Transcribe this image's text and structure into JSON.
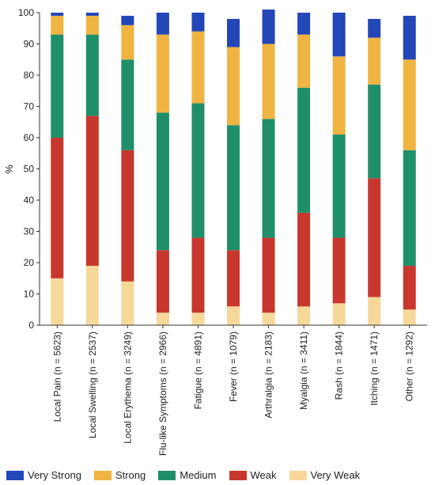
{
  "chart_data": {
    "type": "bar",
    "stacked": true,
    "ylabel": "%",
    "xlabel": "",
    "title": "",
    "ylim": [
      0,
      100
    ],
    "yticks": [
      0,
      10,
      20,
      30,
      40,
      50,
      60,
      70,
      80,
      90,
      100
    ],
    "grid": false,
    "legend_position": "bottom",
    "categories": [
      "Local Pain (n = 5623)",
      "Local Swelling (n = 2537)",
      "Local Erythema (n = 3249)",
      "Flu-like Symptoms (n = 2966)",
      "Fatigue (n = 4891)",
      "Fever (n = 1079)",
      "Arthralgia (n = 2183)",
      "Myalgia (n = 3411)",
      "Rash (n = 1844)",
      "Itching (n = 1471)",
      "Other (n = 1292)"
    ],
    "series": [
      {
        "name": "Very Weak",
        "color": "#f5d89a",
        "values": [
          15,
          19,
          14,
          4,
          4,
          6,
          4,
          6,
          7,
          9,
          5
        ]
      },
      {
        "name": "Weak",
        "color": "#c8372d",
        "values": [
          45,
          48,
          42,
          20,
          24,
          18,
          24,
          30,
          21,
          38,
          14
        ]
      },
      {
        "name": "Medium",
        "color": "#1f8f6a",
        "values": [
          33,
          26,
          29,
          44,
          43,
          40,
          38,
          40,
          33,
          30,
          37
        ]
      },
      {
        "name": "Strong",
        "color": "#efb441",
        "values": [
          6,
          6,
          11,
          25,
          23,
          25,
          24,
          17,
          25,
          15,
          29
        ]
      },
      {
        "name": "Very Strong",
        "color": "#2346b8",
        "values": [
          1,
          1,
          3,
          7,
          6,
          9,
          11,
          7,
          14,
          6,
          14
        ]
      }
    ]
  },
  "legend": {
    "items": [
      {
        "label": "Very Strong",
        "color": "#2346b8"
      },
      {
        "label": "Strong",
        "color": "#efb441"
      },
      {
        "label": "Medium",
        "color": "#1f8f6a"
      },
      {
        "label": "Weak",
        "color": "#c8372d"
      },
      {
        "label": "Very Weak",
        "color": "#f5d89a"
      }
    ]
  }
}
